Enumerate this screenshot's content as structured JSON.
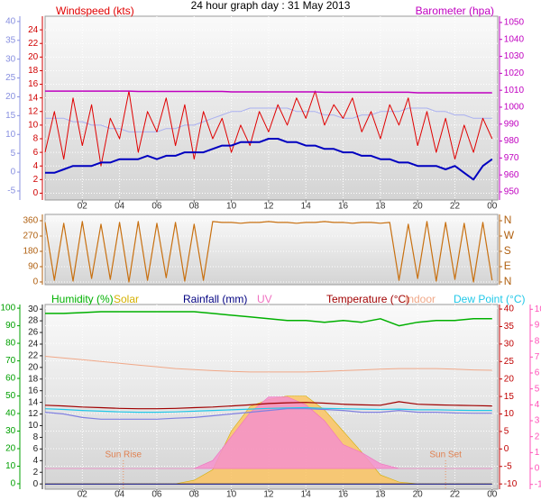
{
  "chart_data": [
    {
      "type": "line",
      "title": "24 hour graph day : 31 May 2013",
      "grid": true,
      "x": [
        0,
        0.5,
        1,
        1.5,
        2,
        2.5,
        3,
        3.5,
        4,
        4.5,
        5,
        5.5,
        6,
        6.5,
        7,
        7.5,
        8,
        8.5,
        9,
        9.5,
        10,
        10.5,
        11,
        11.5,
        12,
        12.5,
        13,
        13.5,
        14,
        14.5,
        15,
        15.5,
        16,
        16.5,
        17,
        17.5,
        18,
        18.5,
        19,
        19.5,
        20,
        20.5,
        21,
        21.5,
        22,
        22.5,
        23,
        23.5,
        24
      ],
      "xlim": [
        0,
        24.3
      ],
      "xticks": [
        {
          "value": 2,
          "label": "02"
        },
        {
          "value": 4,
          "label": "04"
        },
        {
          "value": 6,
          "label": "06"
        },
        {
          "value": 8,
          "label": "08"
        },
        10,
        12,
        14,
        16,
        18,
        20,
        22,
        {
          "value": 24,
          "label": "00"
        }
      ],
      "ylim": [
        -1,
        26
      ],
      "yticks": [
        0,
        2,
        4,
        6,
        8,
        10,
        12,
        14,
        16,
        18,
        20,
        22,
        24
      ],
      "y2lim": [
        945.2,
        1053.7
      ],
      "y2ticks": [
        950,
        960,
        970,
        980,
        990,
        1000,
        1010,
        1020,
        1030,
        1040,
        1050
      ],
      "y3lim": [
        -7.4,
        41.4
      ],
      "y3ticks": [
        -5,
        0,
        5,
        10,
        15,
        20,
        25,
        30,
        35,
        40
      ],
      "series": [
        {
          "color": "#aab0f0",
          "axis": "y",
          "values": [
            11,
            11,
            11,
            10.5,
            10.5,
            10,
            10,
            9.5,
            9.5,
            9,
            9,
            9,
            9,
            9.5,
            9.5,
            10,
            10,
            10.5,
            11,
            11.5,
            12,
            12,
            12.5,
            12.5,
            12.5,
            12.5,
            12.5,
            12,
            12,
            12,
            11.5,
            11.5,
            11,
            11,
            11.5,
            11.5,
            12,
            12,
            12,
            12.5,
            12.5,
            12.5,
            12,
            12,
            11.5,
            11.5,
            11,
            11,
            11
          ]
        },
        {
          "name": "Windspeed (kts)",
          "color": "#e00000",
          "axis": "y",
          "values": [
            6,
            12,
            5,
            14,
            7,
            13,
            4,
            11,
            8,
            15,
            6,
            12,
            9,
            14,
            7,
            13,
            5,
            12,
            8,
            11,
            6,
            10,
            7,
            12,
            9,
            13,
            10,
            14,
            11,
            15,
            10,
            13,
            11,
            14,
            9,
            12,
            8,
            13,
            10,
            14,
            7,
            12,
            6,
            11,
            5,
            10,
            6,
            11,
            8
          ]
        },
        {
          "color": "#0000c0",
          "axis": "y",
          "values": [
            3,
            3,
            3.5,
            4,
            4,
            4,
            4.5,
            4.5,
            5,
            5,
            5,
            5.5,
            5,
            5.5,
            5.5,
            6,
            6,
            6,
            6.5,
            7,
            7,
            7.5,
            7.5,
            7.5,
            8,
            8,
            7.5,
            7.5,
            7,
            7,
            6.5,
            6.5,
            6,
            6,
            5.5,
            5.5,
            5,
            5,
            4.5,
            4.5,
            4,
            4,
            4,
            3.5,
            4,
            3,
            2,
            4,
            5
          ]
        },
        {
          "name": "Barometer (hpa)",
          "color": "#c000c0",
          "axis": "y2",
          "values": [
            1009.5,
            1009.5,
            1009.5,
            1009.5,
            1009.5,
            1009.5,
            1009.5,
            1009.5,
            1009.5,
            1009.5,
            1009.3,
            1009.3,
            1009.3,
            1009.3,
            1009.3,
            1009.3,
            1009.3,
            1009.3,
            1009.3,
            1009.3,
            1009,
            1009,
            1009,
            1009,
            1009,
            1009,
            1009,
            1009,
            1009,
            1009,
            1008.8,
            1008.8,
            1008.8,
            1008.8,
            1008.8,
            1008.8,
            1008.8,
            1008.8,
            1008.8,
            1008.8,
            1008.5,
            1008.5,
            1008.5,
            1008.5,
            1008.5,
            1008.5,
            1008.5,
            1008.5,
            1008.5
          ]
        }
      ]
    },
    {
      "type": "line",
      "grid": true,
      "x": [
        0,
        0.5,
        1,
        1.5,
        2,
        2.5,
        3,
        3.5,
        4,
        4.5,
        5,
        5.5,
        6,
        6.5,
        7,
        7.5,
        8,
        8.5,
        9,
        9.5,
        10,
        10.5,
        11,
        11.5,
        12,
        12.5,
        13,
        13.5,
        14,
        14.5,
        15,
        15.5,
        16,
        16.5,
        17,
        17.5,
        18,
        18.5,
        19,
        19.5,
        20,
        20.5,
        21,
        21.5,
        22,
        22.5,
        23,
        23.5,
        24
      ],
      "xlim": [
        0,
        24.3
      ],
      "ylim": [
        -16,
        397
      ],
      "yticks": [
        0,
        90,
        180,
        270,
        360
      ],
      "y2lim": [
        -16,
        397
      ],
      "y2ticks": [
        {
          "value": 360,
          "label": "N"
        },
        {
          "value": 270,
          "label": "W"
        },
        {
          "value": 180,
          "label": "S"
        },
        {
          "value": 90,
          "label": "E"
        },
        {
          "value": 0,
          "label": "N"
        }
      ],
      "series": [
        {
          "color": "#c87010",
          "axis": "y",
          "values": [
            350,
            10,
            345,
            5,
            355,
            20,
            340,
            15,
            350,
            0,
            355,
            10,
            345,
            25,
            350,
            5,
            340,
            10,
            355,
            350,
            350,
            345,
            350,
            350,
            355,
            350,
            350,
            345,
            350,
            350,
            355,
            350,
            350,
            345,
            350,
            350,
            345,
            350,
            10,
            340,
            20,
            355,
            5,
            350,
            15,
            345,
            0,
            350,
            10
          ]
        }
      ]
    },
    {
      "type": "line",
      "grid": true,
      "x": [
        0,
        1,
        2,
        3,
        4,
        5,
        6,
        7,
        8,
        9,
        10,
        11,
        12,
        13,
        14,
        15,
        16,
        17,
        18,
        19,
        20,
        21,
        22,
        23,
        24
      ],
      "xlim": [
        0,
        24.3
      ],
      "xticks": [
        {
          "value": 2,
          "label": "02"
        },
        {
          "value": 4,
          "label": "04"
        },
        {
          "value": 6,
          "label": "06"
        },
        {
          "value": 8,
          "label": "08"
        },
        10,
        12,
        14,
        16,
        18,
        20,
        22,
        {
          "value": 24,
          "label": "00"
        }
      ],
      "ylim": [
        -3.1,
        102.1
      ],
      "yticks": [
        0,
        10,
        20,
        30,
        40,
        50,
        60,
        70,
        80,
        90,
        100
      ],
      "y2lim": [
        -11.5,
        41.3
      ],
      "y2ticks": [
        -10,
        -5,
        0,
        5,
        10,
        15,
        20,
        25,
        30,
        35,
        40
      ],
      "y3lim": [
        -0.9,
        30.8
      ],
      "y3ticks": [
        0,
        2,
        4,
        6,
        8,
        10,
        12,
        14,
        16,
        18,
        20,
        22,
        24,
        26,
        28,
        30
      ],
      "y4lim": [
        -1.3,
        10.3
      ],
      "y4ticks": [
        -1,
        0,
        1,
        2,
        3,
        4,
        5,
        6,
        7,
        8,
        9,
        10
      ],
      "series": [
        {
          "name": "Humidity (%)",
          "color": "#00b000",
          "axis": "y",
          "values": [
            97,
            97,
            97.5,
            98,
            98,
            98,
            98,
            98,
            98,
            97,
            96,
            95,
            94,
            93,
            93,
            92,
            93,
            92,
            94,
            90,
            92,
            93,
            93,
            94,
            94
          ]
        },
        {
          "name": "Solar",
          "color": "#d4b000",
          "fill_color": "#fcc463",
          "fill": true,
          "axis": "y",
          "values": [
            0,
            0,
            0,
            0,
            0,
            0,
            0,
            0,
            2,
            8,
            30,
            44,
            48,
            50,
            50,
            42,
            30,
            18,
            5,
            1,
            0,
            0,
            0,
            0,
            0
          ]
        },
        {
          "name": "Rainfall (mm)",
          "color": "#000080",
          "axis": "y3",
          "values": [
            0,
            0,
            0,
            0,
            0,
            0,
            0,
            0,
            0,
            0,
            0,
            0,
            0,
            0,
            0,
            0,
            0,
            0,
            0,
            0,
            0,
            0,
            0,
            0,
            0
          ]
        },
        {
          "name": "UV",
          "color": "#f070c0",
          "fill_color": "#f490cc",
          "fill": true,
          "axis": "y4",
          "values": [
            0,
            0,
            0,
            0,
            0,
            0,
            0,
            0,
            0,
            0.5,
            2,
            3.5,
            4.5,
            4.5,
            4,
            3,
            1.5,
            1,
            0.3,
            0,
            0,
            0,
            0,
            0,
            0
          ]
        },
        {
          "name": "Temperature (°C)",
          "color": "#a00000",
          "axis": "y2",
          "values": [
            12.5,
            12.3,
            12,
            11.8,
            11.6,
            11.5,
            11.5,
            11.6,
            11.8,
            12,
            12.3,
            12.6,
            13,
            13.2,
            13.3,
            13.1,
            12.8,
            12.6,
            12.5,
            13.5,
            12.8,
            12.6,
            12.5,
            12.4,
            12.3
          ]
        },
        {
          "name": "Indoor",
          "color": "#f0a888",
          "axis": "y2",
          "values": [
            26.5,
            26,
            25.5,
            25,
            24.5,
            24,
            23.5,
            23,
            22.7,
            22.4,
            22.2,
            22,
            22,
            22,
            22,
            22.2,
            22.4,
            22.6,
            22.8,
            23,
            23,
            23,
            22.8,
            22.6,
            22.5
          ]
        },
        {
          "name": "Dew Point (°C)",
          "color": "#20c8e8",
          "axis": "y2",
          "values": [
            11.5,
            11.3,
            11,
            10.8,
            10.6,
            10.5,
            10.5,
            10.6,
            10.8,
            11,
            11.2,
            11.4,
            11.6,
            11.7,
            11.8,
            11.6,
            11.5,
            11.4,
            11.3,
            11.4,
            11.2,
            11.2,
            11.1,
            11,
            11
          ]
        },
        {
          "color": "#8080e0",
          "axis": "y2",
          "values": [
            10.5,
            10,
            9,
            8.5,
            8.5,
            8.5,
            8.5,
            8.8,
            9,
            9.5,
            10,
            10.5,
            11,
            11.5,
            11.5,
            11.3,
            11,
            10.5,
            10.5,
            11,
            10.5,
            10.5,
            10.3,
            10.2,
            10.2
          ]
        }
      ],
      "annotations": [
        {
          "text": "Sun Rise",
          "x": 4.2
        },
        {
          "text": "Sun Set",
          "x": 21.5
        }
      ]
    }
  ]
}
